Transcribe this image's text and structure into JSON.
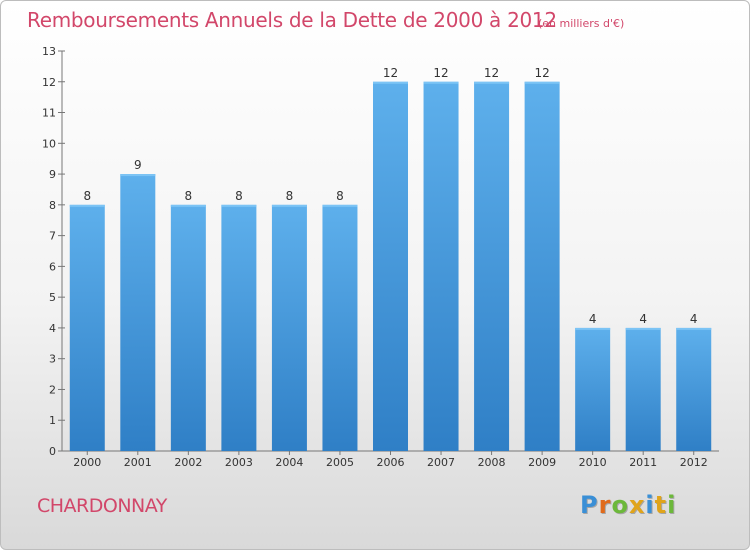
{
  "chart_data": {
    "type": "bar",
    "title": "Remboursements Annuels de la Dette de 2000 à 2012",
    "unit": "(en milliers d'€)",
    "categories": [
      "2000",
      "2001",
      "2002",
      "2003",
      "2004",
      "2005",
      "2006",
      "2007",
      "2008",
      "2009",
      "2010",
      "2011",
      "2012"
    ],
    "values": [
      8,
      9,
      8,
      8,
      8,
      8,
      12,
      12,
      12,
      12,
      4,
      4,
      4
    ],
    "xlabel": "",
    "ylabel": "",
    "ylim": [
      0,
      13
    ],
    "yticks": [
      0,
      1,
      2,
      3,
      4,
      5,
      6,
      7,
      8,
      9,
      10,
      11,
      12,
      13
    ],
    "grid": false,
    "bar_color": "#4a9de0"
  },
  "footer": {
    "commune": "CHARDONNAY",
    "logo_letters": [
      "P",
      "r",
      "o",
      "x",
      "i",
      "t",
      "i"
    ],
    "logo_colors": [
      "#3a8fd6",
      "#e06a1b",
      "#6cb83a",
      "#e0a41b",
      "#3a8fd6",
      "#e0a41b",
      "#6cb83a"
    ]
  }
}
